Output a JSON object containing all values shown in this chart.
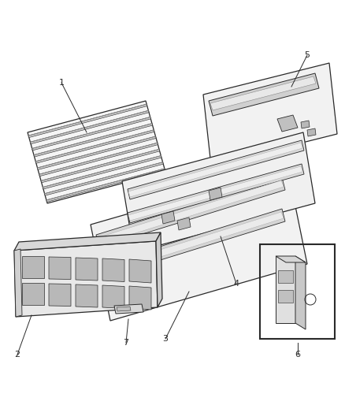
{
  "background_color": "#ffffff",
  "line_color": "#2a2a2a",
  "label_color": "#2a2a2a",
  "fig_width": 4.38,
  "fig_height": 5.33,
  "dpi": 100
}
